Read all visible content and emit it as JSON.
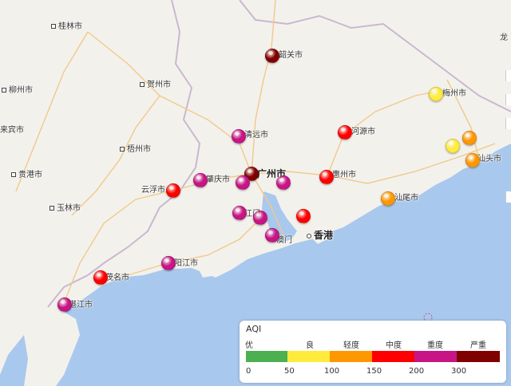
{
  "colors": {
    "sea": "#a9c8ee",
    "land": "#f3f1ec",
    "road": "#f1c98a",
    "border": "#c9b8cf",
    "levels": [
      "#4caf50",
      "#ffeb3b",
      "#ff9800",
      "#ff0000",
      "#c71585",
      "#800000"
    ]
  },
  "cities": [
    {
      "name": "桂林市",
      "type": "plain"
    },
    {
      "name": "柳州市",
      "type": "plain"
    },
    {
      "name": "贺州市",
      "type": "plain"
    },
    {
      "name": "梧州市",
      "type": "plain"
    },
    {
      "name": "来宾市",
      "type": "plain"
    },
    {
      "name": "贵港市",
      "type": "plain"
    },
    {
      "name": "玉林市",
      "type": "plain"
    },
    {
      "name": "韶关市",
      "type": "monitored"
    },
    {
      "name": "梅州市",
      "type": "monitored"
    },
    {
      "name": "清远市",
      "type": "monitored"
    },
    {
      "name": "河源市",
      "type": "monitored"
    },
    {
      "name": "肇庆市",
      "type": "monitored"
    },
    {
      "name": "广州市",
      "type": "monitored-big"
    },
    {
      "name": "惠州市",
      "type": "monitored"
    },
    {
      "name": "云浮市",
      "type": "monitored"
    },
    {
      "name": "汕头市",
      "type": "monitored"
    },
    {
      "name": "汕尾市",
      "type": "monitored"
    },
    {
      "name": "江门",
      "type": "monitored"
    },
    {
      "name": "澳门",
      "type": "monitored"
    },
    {
      "name": "香港",
      "type": "plain-big"
    },
    {
      "name": "阳江市",
      "type": "monitored"
    },
    {
      "name": "茂名市",
      "type": "monitored"
    },
    {
      "name": "湛江市",
      "type": "monitored"
    },
    {
      "name": "龙",
      "type": "edge"
    }
  ],
  "stations": [
    {
      "level": 5
    },
    {
      "level": 1
    },
    {
      "level": 4
    },
    {
      "level": 3
    },
    {
      "level": 3
    },
    {
      "level": 1
    },
    {
      "level": 2
    },
    {
      "level": 2
    },
    {
      "level": 4
    },
    {
      "level": 5
    },
    {
      "level": 4
    },
    {
      "level": 4
    },
    {
      "level": 3
    },
    {
      "level": 4
    },
    {
      "level": 3
    },
    {
      "level": 2
    },
    {
      "level": 4
    },
    {
      "level": 4
    },
    {
      "level": 3
    },
    {
      "level": 4
    },
    {
      "level": 4
    },
    {
      "level": 3
    },
    {
      "level": 3
    }
  ],
  "legend": {
    "title": "AQI",
    "levels": [
      "优",
      "良",
      "轻度",
      "中度",
      "重度",
      "严重"
    ],
    "ticks": [
      "0",
      "50",
      "100",
      "150",
      "200",
      "300"
    ]
  }
}
